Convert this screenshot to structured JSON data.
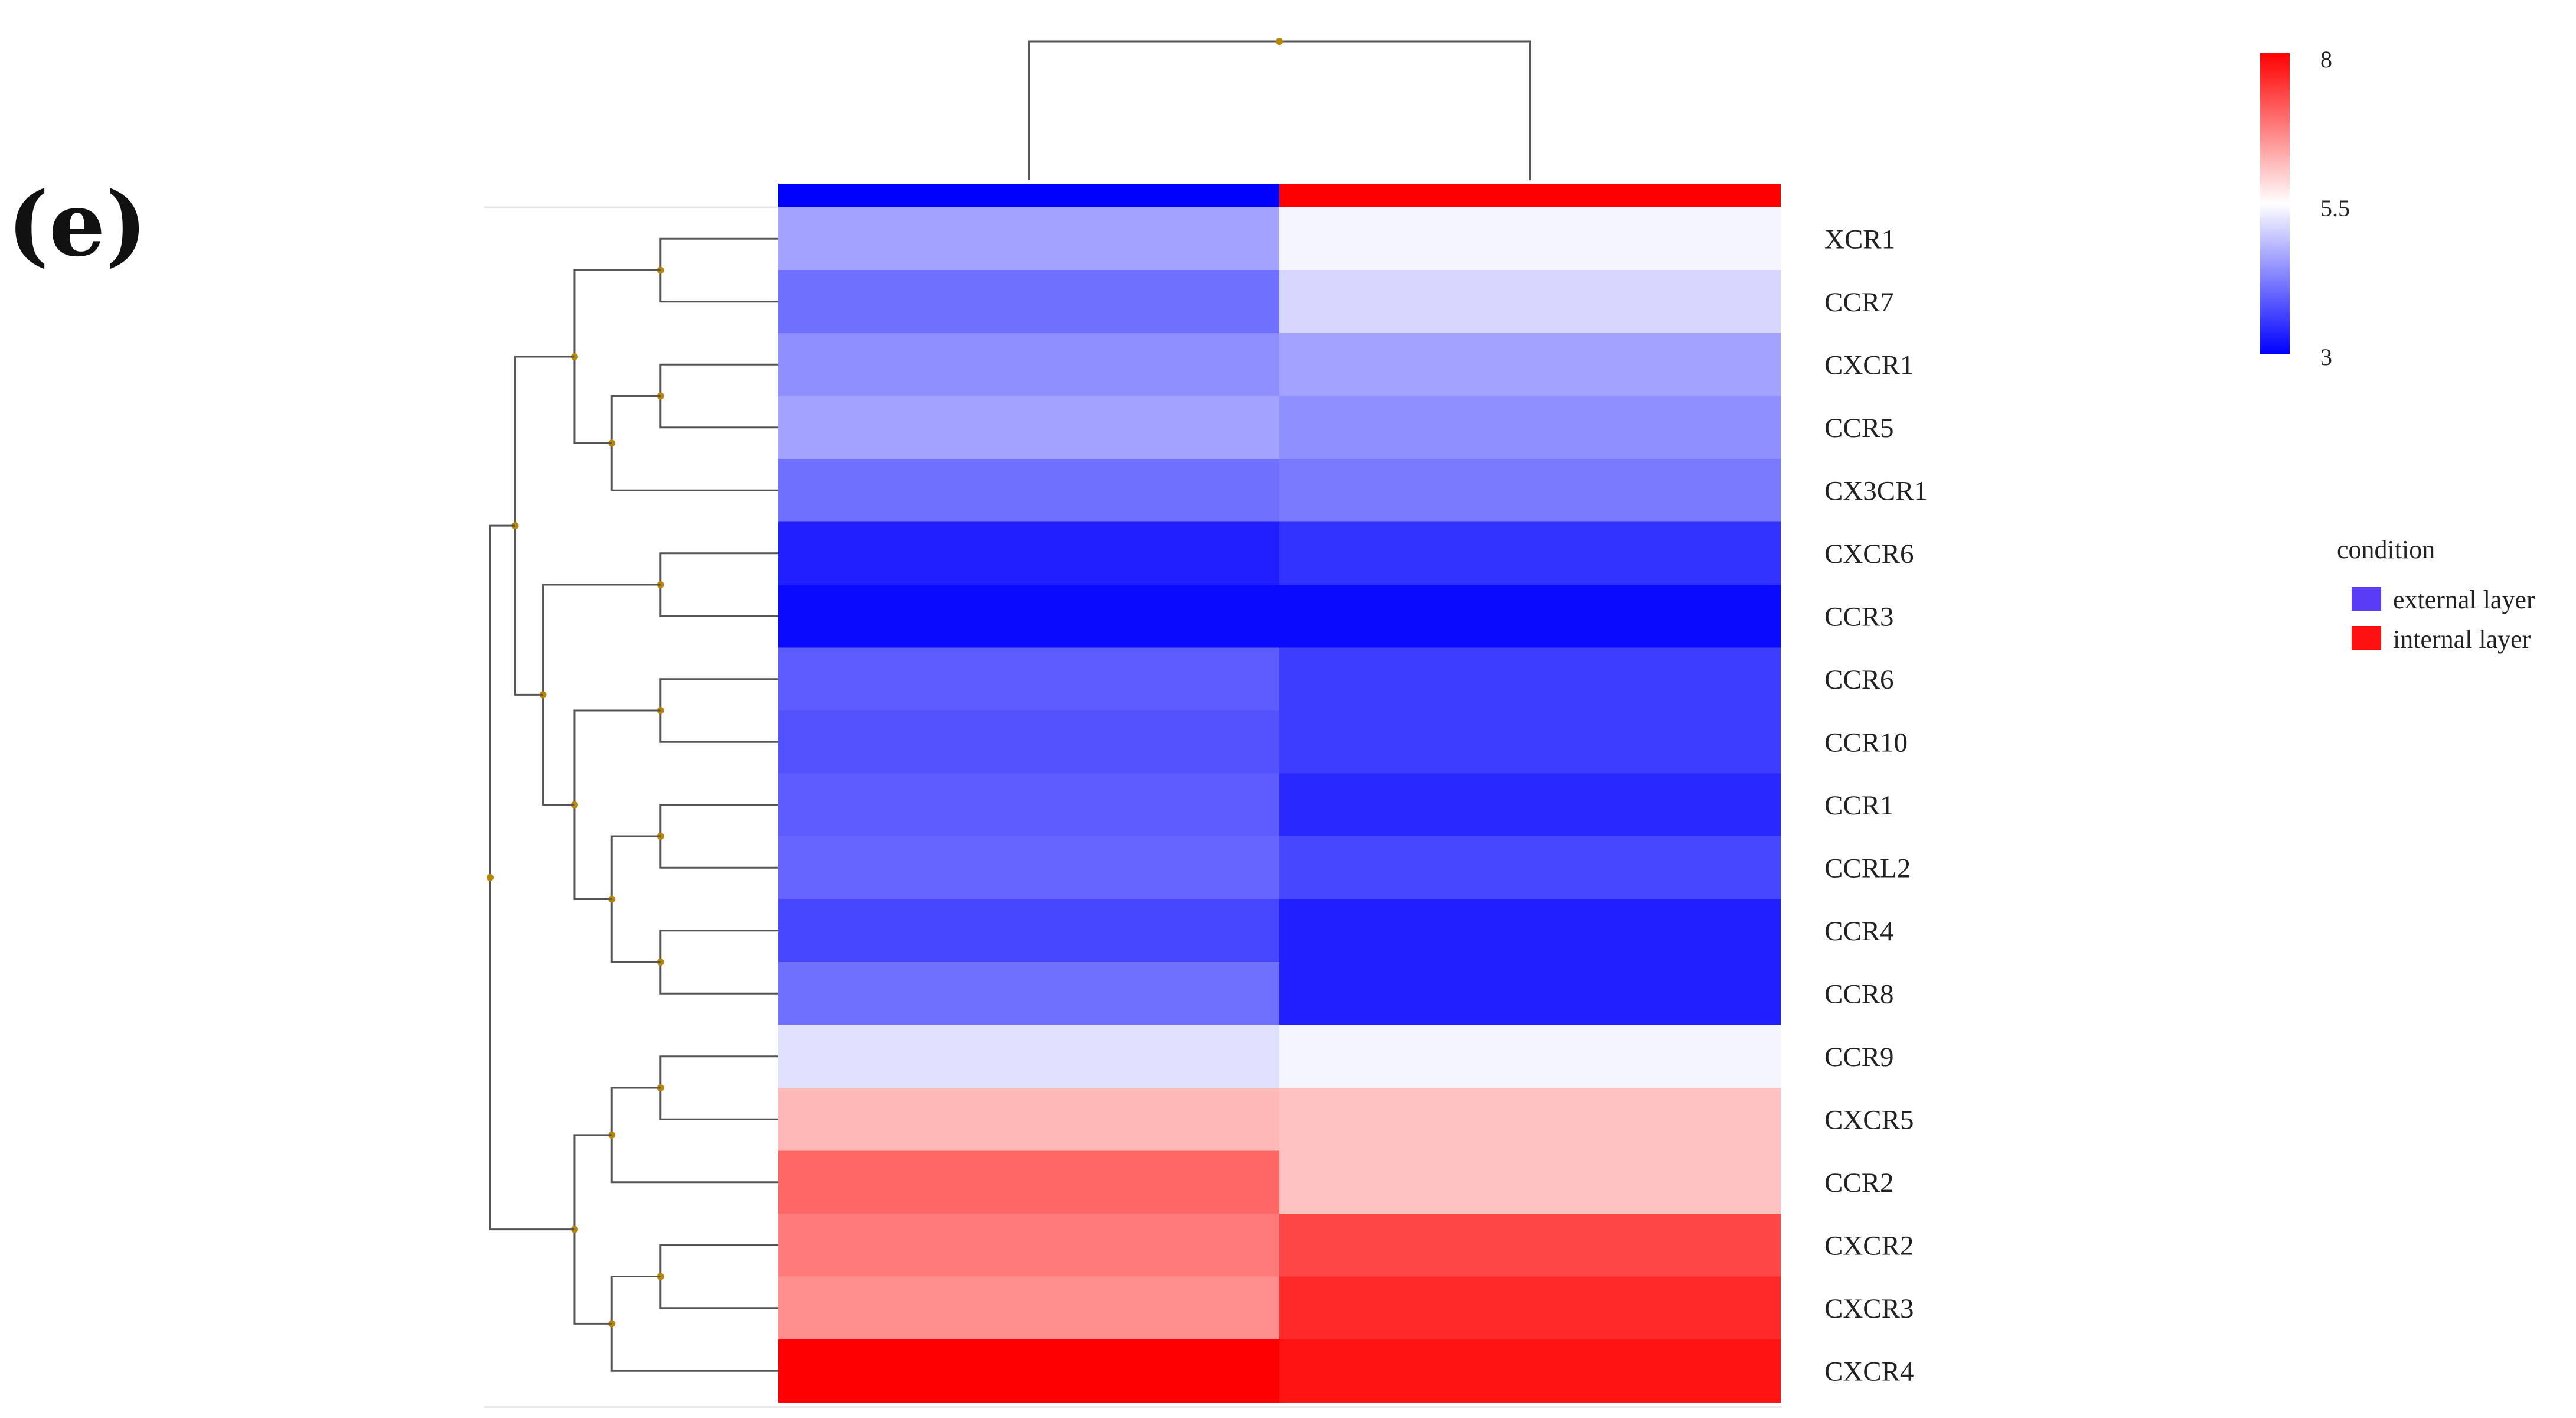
{
  "panel_label": "(e)",
  "chart_data": {
    "type": "heatmap",
    "title": "",
    "xlabel": "",
    "ylabel": "",
    "rows": [
      "XCR1",
      "CCR7",
      "CXCR1",
      "CCR5",
      "CX3CR1",
      "CXCR6",
      "CCR3",
      "CCR6",
      "CCR10",
      "CCR1",
      "CCRL2",
      "CCR4",
      "CCR8",
      "CCR9",
      "CXCR5",
      "CCR2",
      "CXCR2",
      "CXCR3",
      "CXCR4"
    ],
    "columns": [
      "external layer",
      "internal layer"
    ],
    "values": [
      [
        4.6,
        5.4
      ],
      [
        4.1,
        5.1
      ],
      [
        4.4,
        4.6
      ],
      [
        4.6,
        4.4
      ],
      [
        4.1,
        4.2
      ],
      [
        3.3,
        3.5
      ],
      [
        3.1,
        3.1
      ],
      [
        3.9,
        3.6
      ],
      [
        3.8,
        3.6
      ],
      [
        3.9,
        3.4
      ],
      [
        4.0,
        3.7
      ],
      [
        3.7,
        3.3
      ],
      [
        4.1,
        3.3
      ],
      [
        5.2,
        5.4
      ],
      [
        6.2,
        6.1
      ],
      [
        7.0,
        6.1
      ],
      [
        6.8,
        7.3
      ],
      [
        6.6,
        7.6
      ],
      [
        8.0,
        7.8
      ]
    ],
    "color_scale": {
      "min": 3,
      "mid": 5.5,
      "max": 8,
      "ticks": [
        "8",
        "5.5",
        "3"
      ],
      "low_color": "#0000ff",
      "mid_color": "#ffffff",
      "high_color": "#ff0000"
    },
    "column_annotation": {
      "title": "condition",
      "entries": [
        {
          "label": "external layer",
          "color": "#0000ff",
          "legend_color": "#5a3cf5"
        },
        {
          "label": "internal layer",
          "color": "#ff0000",
          "legend_color": "#ff1010"
        }
      ]
    },
    "node_color": "#b8860b",
    "row_dendrogram": [
      [
        0,
        1
      ],
      [
        2,
        3
      ],
      [
        20,
        4
      ],
      [
        19,
        21
      ],
      [
        5,
        6
      ],
      [
        7,
        8
      ],
      [
        9,
        10
      ],
      [
        11,
        12
      ],
      [
        25,
        26
      ],
      [
        24,
        27
      ],
      [
        23,
        28
      ],
      [
        22,
        29
      ],
      [
        13,
        14
      ],
      [
        31,
        15
      ],
      [
        16,
        17
      ],
      [
        33,
        18
      ],
      [
        32,
        34
      ],
      [
        30,
        35
      ]
    ],
    "column_dendrogram": [
      [
        0,
        1
      ]
    ]
  }
}
